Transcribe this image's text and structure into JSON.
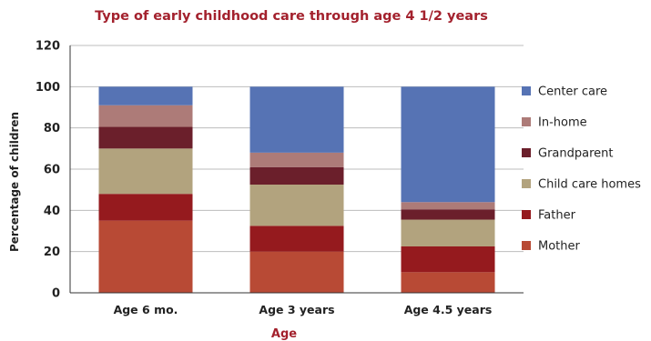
{
  "chart_data": {
    "type": "bar",
    "stacked": true,
    "title": "Type of early childhood care through age 4 1/2 years",
    "xlabel": "Age",
    "ylabel": "Percentage of children",
    "ylim": [
      0,
      120
    ],
    "yticks": [
      0,
      20,
      40,
      60,
      80,
      100,
      120
    ],
    "grid": true,
    "legend": "right",
    "categories": [
      "Age 6 mo.",
      "Age 3 years",
      "Age 4.5 years"
    ],
    "series": [
      {
        "name": "Mother",
        "color": "#b84a35",
        "values": [
          35,
          20,
          10
        ]
      },
      {
        "name": "Father",
        "color": "#951a1e",
        "values": [
          13,
          12.5,
          12.5
        ]
      },
      {
        "name": "Child care homes",
        "color": "#b2a37e",
        "values": [
          22,
          20,
          13
        ]
      },
      {
        "name": "Grandparent",
        "color": "#6b1f2b",
        "values": [
          10.5,
          8.5,
          5
        ]
      },
      {
        "name": "In-home",
        "color": "#ad7b78",
        "values": [
          10.5,
          7,
          3.5
        ]
      },
      {
        "name": "Center care",
        "color": "#5673b4",
        "values": [
          9,
          32,
          56
        ]
      }
    ]
  }
}
